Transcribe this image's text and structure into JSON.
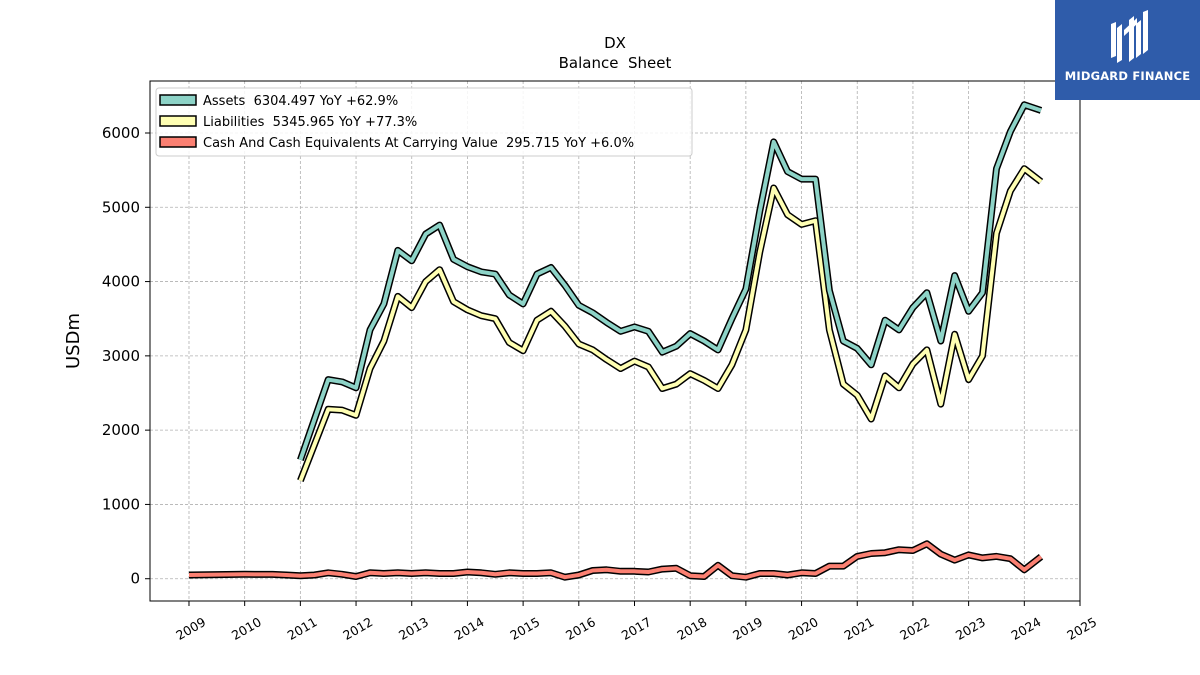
{
  "chart_data": {
    "type": "line",
    "title": "DX",
    "subtitle": "Balance  Sheet",
    "ylabel": "USDm",
    "xlabel": "",
    "ylim": [
      -300,
      6700
    ],
    "xlim": [
      2008.3,
      2025.0
    ],
    "x_ticks": [
      2009,
      2010,
      2011,
      2012,
      2013,
      2014,
      2015,
      2016,
      2017,
      2018,
      2019,
      2020,
      2021,
      2022,
      2023,
      2024,
      2025
    ],
    "y_ticks": [
      0,
      1000,
      2000,
      3000,
      4000,
      5000,
      6000
    ],
    "grid": true,
    "legend_position": "top-left",
    "series": [
      {
        "name": "Assets  6304.497 YoY +62.9%",
        "color": "#8dd3c7",
        "points": [
          [
            2011.0,
            1600
          ],
          [
            2011.5,
            2680
          ],
          [
            2011.75,
            2650
          ],
          [
            2012.0,
            2570
          ],
          [
            2012.25,
            3350
          ],
          [
            2012.5,
            3700
          ],
          [
            2012.75,
            4420
          ],
          [
            2013.0,
            4280
          ],
          [
            2013.25,
            4640
          ],
          [
            2013.5,
            4760
          ],
          [
            2013.75,
            4300
          ],
          [
            2014.0,
            4200
          ],
          [
            2014.25,
            4130
          ],
          [
            2014.5,
            4100
          ],
          [
            2014.75,
            3820
          ],
          [
            2015.0,
            3700
          ],
          [
            2015.25,
            4100
          ],
          [
            2015.5,
            4190
          ],
          [
            2015.75,
            3950
          ],
          [
            2016.0,
            3680
          ],
          [
            2016.25,
            3580
          ],
          [
            2016.5,
            3450
          ],
          [
            2016.75,
            3330
          ],
          [
            2017.0,
            3390
          ],
          [
            2017.25,
            3330
          ],
          [
            2017.5,
            3050
          ],
          [
            2017.75,
            3130
          ],
          [
            2018.0,
            3300
          ],
          [
            2018.25,
            3200
          ],
          [
            2018.5,
            3080
          ],
          [
            2018.75,
            3500
          ],
          [
            2019.0,
            3900
          ],
          [
            2019.25,
            4950
          ],
          [
            2019.5,
            5880
          ],
          [
            2019.75,
            5480
          ],
          [
            2020.0,
            5380
          ],
          [
            2020.25,
            5380
          ],
          [
            2020.5,
            3880
          ],
          [
            2020.75,
            3200
          ],
          [
            2021.0,
            3100
          ],
          [
            2021.25,
            2880
          ],
          [
            2021.5,
            3480
          ],
          [
            2021.75,
            3350
          ],
          [
            2022.0,
            3650
          ],
          [
            2022.25,
            3850
          ],
          [
            2022.5,
            3200
          ],
          [
            2022.75,
            4080
          ],
          [
            2023.0,
            3600
          ],
          [
            2023.25,
            3850
          ],
          [
            2023.5,
            5520
          ],
          [
            2023.75,
            6020
          ],
          [
            2024.0,
            6380
          ],
          [
            2024.3,
            6304
          ]
        ]
      },
      {
        "name": "Liabilities  5345.965 YoY +77.3%",
        "color": "#ffffb3",
        "points": [
          [
            2011.0,
            1320
          ],
          [
            2011.5,
            2280
          ],
          [
            2011.75,
            2270
          ],
          [
            2012.0,
            2200
          ],
          [
            2012.25,
            2830
          ],
          [
            2012.5,
            3200
          ],
          [
            2012.75,
            3800
          ],
          [
            2013.0,
            3650
          ],
          [
            2013.25,
            4000
          ],
          [
            2013.5,
            4160
          ],
          [
            2013.75,
            3730
          ],
          [
            2014.0,
            3620
          ],
          [
            2014.25,
            3540
          ],
          [
            2014.5,
            3500
          ],
          [
            2014.75,
            3180
          ],
          [
            2015.0,
            3070
          ],
          [
            2015.25,
            3480
          ],
          [
            2015.5,
            3600
          ],
          [
            2015.75,
            3400
          ],
          [
            2016.0,
            3160
          ],
          [
            2016.25,
            3080
          ],
          [
            2016.5,
            2950
          ],
          [
            2016.75,
            2830
          ],
          [
            2017.0,
            2930
          ],
          [
            2017.25,
            2850
          ],
          [
            2017.5,
            2560
          ],
          [
            2017.75,
            2620
          ],
          [
            2018.0,
            2760
          ],
          [
            2018.25,
            2670
          ],
          [
            2018.5,
            2560
          ],
          [
            2018.75,
            2880
          ],
          [
            2019.0,
            3350
          ],
          [
            2019.25,
            4400
          ],
          [
            2019.5,
            5260
          ],
          [
            2019.75,
            4900
          ],
          [
            2020.0,
            4770
          ],
          [
            2020.25,
            4820
          ],
          [
            2020.5,
            3350
          ],
          [
            2020.75,
            2620
          ],
          [
            2021.0,
            2470
          ],
          [
            2021.25,
            2150
          ],
          [
            2021.5,
            2730
          ],
          [
            2021.75,
            2570
          ],
          [
            2022.0,
            2890
          ],
          [
            2022.25,
            3080
          ],
          [
            2022.5,
            2350
          ],
          [
            2022.75,
            3290
          ],
          [
            2023.0,
            2680
          ],
          [
            2023.25,
            3000
          ],
          [
            2023.5,
            4650
          ],
          [
            2023.75,
            5220
          ],
          [
            2024.0,
            5520
          ],
          [
            2024.3,
            5346
          ]
        ]
      },
      {
        "name": "Cash And Cash Equivalents At Carrying Value  295.715 YoY +6.0%",
        "color": "#fb8072",
        "points": [
          [
            2009.0,
            50
          ],
          [
            2009.5,
            55
          ],
          [
            2010.0,
            60
          ],
          [
            2010.5,
            58
          ],
          [
            2010.75,
            50
          ],
          [
            2011.0,
            40
          ],
          [
            2011.25,
            50
          ],
          [
            2011.5,
            80
          ],
          [
            2011.75,
            60
          ],
          [
            2012.0,
            30
          ],
          [
            2012.25,
            80
          ],
          [
            2012.5,
            70
          ],
          [
            2012.75,
            80
          ],
          [
            2013.0,
            70
          ],
          [
            2013.25,
            80
          ],
          [
            2013.5,
            70
          ],
          [
            2013.75,
            70
          ],
          [
            2014.0,
            90
          ],
          [
            2014.25,
            80
          ],
          [
            2014.5,
            60
          ],
          [
            2014.75,
            80
          ],
          [
            2015.0,
            70
          ],
          [
            2015.25,
            70
          ],
          [
            2015.5,
            80
          ],
          [
            2015.75,
            20
          ],
          [
            2016.0,
            50
          ],
          [
            2016.25,
            110
          ],
          [
            2016.5,
            120
          ],
          [
            2016.75,
            100
          ],
          [
            2017.0,
            100
          ],
          [
            2017.25,
            90
          ],
          [
            2017.5,
            130
          ],
          [
            2017.75,
            140
          ],
          [
            2018.0,
            40
          ],
          [
            2018.25,
            30
          ],
          [
            2018.5,
            180
          ],
          [
            2018.75,
            40
          ],
          [
            2019.0,
            20
          ],
          [
            2019.25,
            70
          ],
          [
            2019.5,
            70
          ],
          [
            2019.75,
            50
          ],
          [
            2020.0,
            80
          ],
          [
            2020.25,
            70
          ],
          [
            2020.5,
            170
          ],
          [
            2020.75,
            170
          ],
          [
            2021.0,
            300
          ],
          [
            2021.25,
            340
          ],
          [
            2021.5,
            350
          ],
          [
            2021.75,
            390
          ],
          [
            2022.0,
            380
          ],
          [
            2022.25,
            470
          ],
          [
            2022.5,
            330
          ],
          [
            2022.75,
            250
          ],
          [
            2023.0,
            320
          ],
          [
            2023.25,
            280
          ],
          [
            2023.5,
            300
          ],
          [
            2023.75,
            270
          ],
          [
            2024.0,
            120
          ],
          [
            2024.3,
            296
          ]
        ]
      }
    ]
  },
  "logo": {
    "text": "MIDGARD FINANCE"
  }
}
